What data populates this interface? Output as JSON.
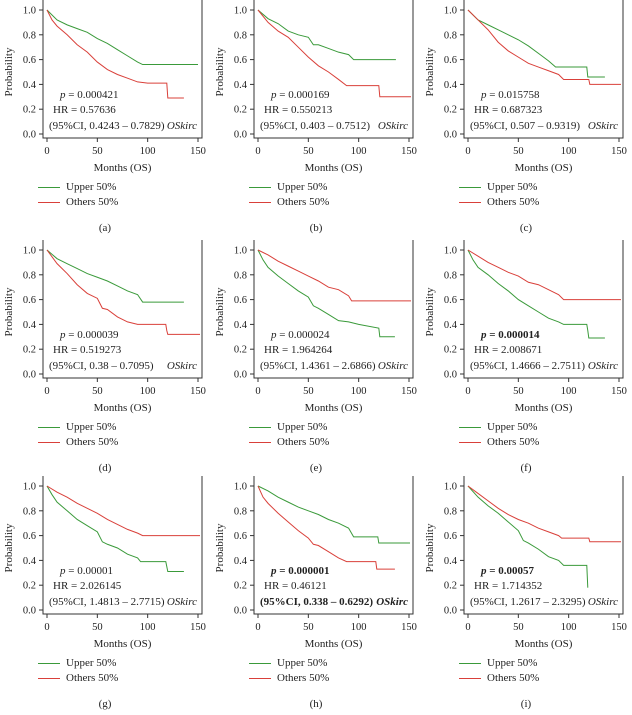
{
  "figure": {
    "x_axis_label": "Months (OS)",
    "y_axis_label": "Probability",
    "cohort_label": "OSkirc",
    "legend": [
      {
        "label": "Upper 50%",
        "color": "#3a9a3a"
      },
      {
        "label": "Others 50%",
        "color": "#d9403a"
      }
    ]
  },
  "chart_data": [
    {
      "id": "a",
      "caption": "(a)",
      "type": "line",
      "title": "",
      "xlabel": "Months (OS)",
      "ylabel": "Probability",
      "xlim": [
        0,
        150
      ],
      "ylim": [
        0,
        1
      ],
      "xticks": [
        0,
        50,
        100,
        150
      ],
      "yticks": [
        0.0,
        0.2,
        0.4,
        0.6,
        0.8,
        1.0
      ],
      "p_text": "p = 0.000421",
      "p_bold": false,
      "hr_text": "HR = 0.57636",
      "ci_text": "(95%CI, 0.4243 – 0.7829)",
      "cohort": "OSkirc",
      "series": [
        {
          "name": "Upper 50%",
          "x": [
            0,
            10,
            20,
            30,
            40,
            50,
            60,
            70,
            80,
            90,
            95,
            150
          ],
          "y": [
            1.0,
            0.92,
            0.88,
            0.85,
            0.82,
            0.77,
            0.73,
            0.68,
            0.63,
            0.58,
            0.56,
            0.56
          ]
        },
        {
          "name": "Others 50%",
          "x": [
            0,
            5,
            10,
            20,
            30,
            40,
            50,
            60,
            70,
            80,
            90,
            100,
            119,
            120,
            136
          ],
          "y": [
            1.0,
            0.92,
            0.87,
            0.8,
            0.72,
            0.66,
            0.58,
            0.52,
            0.48,
            0.45,
            0.42,
            0.41,
            0.41,
            0.29,
            0.29
          ]
        }
      ]
    },
    {
      "id": "b",
      "caption": "(b)",
      "type": "line",
      "title": "",
      "xlabel": "Months (OS)",
      "ylabel": "Probability",
      "xlim": [
        0,
        150
      ],
      "ylim": [
        0,
        1
      ],
      "xticks": [
        0,
        50,
        100,
        150
      ],
      "yticks": [
        0.0,
        0.2,
        0.4,
        0.6,
        0.8,
        1.0
      ],
      "p_text": "p = 0.000169",
      "p_bold": false,
      "hr_text": "HR = 0.550213",
      "ci_text": "(95%CI, 0.403 – 0.7512)",
      "cohort": "OSkirc",
      "series": [
        {
          "name": "Upper 50%",
          "x": [
            0,
            10,
            20,
            30,
            40,
            50,
            55,
            60,
            70,
            80,
            90,
            95,
            137
          ],
          "y": [
            1.0,
            0.93,
            0.89,
            0.83,
            0.8,
            0.78,
            0.72,
            0.72,
            0.69,
            0.66,
            0.64,
            0.6,
            0.6
          ]
        },
        {
          "name": "Others 50%",
          "x": [
            0,
            10,
            20,
            30,
            40,
            50,
            60,
            70,
            80,
            88,
            120,
            121,
            152
          ],
          "y": [
            1.0,
            0.9,
            0.83,
            0.78,
            0.7,
            0.62,
            0.55,
            0.5,
            0.44,
            0.39,
            0.39,
            0.3,
            0.3
          ]
        }
      ]
    },
    {
      "id": "c",
      "caption": "(c)",
      "type": "line",
      "title": "",
      "xlabel": "Months (OS)",
      "ylabel": "Probability",
      "xlim": [
        0,
        150
      ],
      "ylim": [
        0,
        1
      ],
      "xticks": [
        0,
        50,
        100,
        150
      ],
      "yticks": [
        0.0,
        0.2,
        0.4,
        0.6,
        0.8,
        1.0
      ],
      "p_text": "p = 0.015758",
      "p_bold": false,
      "hr_text": "HR = 0.687323",
      "ci_text": "(95%CI, 0.507 – 0.9319)",
      "cohort": "OSkirc",
      "series": [
        {
          "name": "Upper 50%",
          "x": [
            0,
            10,
            20,
            30,
            40,
            50,
            60,
            70,
            80,
            87,
            118,
            119,
            136
          ],
          "y": [
            1.0,
            0.92,
            0.88,
            0.84,
            0.8,
            0.76,
            0.71,
            0.65,
            0.59,
            0.54,
            0.54,
            0.46,
            0.46
          ]
        },
        {
          "name": "Others 50%",
          "x": [
            0,
            10,
            20,
            30,
            40,
            50,
            60,
            70,
            80,
            90,
            95,
            120,
            121,
            152
          ],
          "y": [
            1.0,
            0.92,
            0.84,
            0.74,
            0.67,
            0.62,
            0.57,
            0.54,
            0.51,
            0.48,
            0.44,
            0.44,
            0.4,
            0.4
          ]
        }
      ]
    },
    {
      "id": "d",
      "caption": "(d)",
      "type": "line",
      "title": "",
      "xlabel": "Months (OS)",
      "ylabel": "Probability",
      "xlim": [
        0,
        150
      ],
      "ylim": [
        0,
        1
      ],
      "xticks": [
        0,
        50,
        100,
        150
      ],
      "yticks": [
        0.0,
        0.2,
        0.4,
        0.6,
        0.8,
        1.0
      ],
      "p_text": "p = 0.000039",
      "p_bold": false,
      "hr_text": "HR = 0.519273",
      "ci_text": "(95%CI, 0.38 – 0.7095)",
      "cohort": "OSkirc",
      "series": [
        {
          "name": "Upper 50%",
          "x": [
            0,
            10,
            20,
            30,
            40,
            50,
            60,
            70,
            80,
            90,
            95,
            136
          ],
          "y": [
            1.0,
            0.93,
            0.89,
            0.85,
            0.81,
            0.78,
            0.75,
            0.71,
            0.67,
            0.64,
            0.58,
            0.58
          ]
        },
        {
          "name": "Others 50%",
          "x": [
            0,
            10,
            20,
            30,
            40,
            50,
            55,
            60,
            70,
            80,
            90,
            118,
            119,
            120,
            152
          ],
          "y": [
            1.0,
            0.89,
            0.81,
            0.72,
            0.65,
            0.61,
            0.53,
            0.52,
            0.46,
            0.42,
            0.4,
            0.4,
            0.35,
            0.32,
            0.32
          ]
        }
      ]
    },
    {
      "id": "e",
      "caption": "(e)",
      "type": "line",
      "title": "",
      "xlabel": "Months (OS)",
      "ylabel": "Probability",
      "xlim": [
        0,
        150
      ],
      "ylim": [
        0,
        1
      ],
      "xticks": [
        0,
        50,
        100,
        150
      ],
      "yticks": [
        0.0,
        0.2,
        0.4,
        0.6,
        0.8,
        1.0
      ],
      "p_text": "p = 0.000024",
      "p_bold": false,
      "hr_text": "HR = 1.964264",
      "ci_text": "(95%CI, 1.4361 – 2.6866)",
      "cohort": "OSkirc",
      "series": [
        {
          "name": "Upper 50%",
          "x": [
            0,
            5,
            10,
            20,
            30,
            40,
            50,
            55,
            60,
            70,
            80,
            90,
            100,
            120,
            121,
            136
          ],
          "y": [
            1.0,
            0.92,
            0.86,
            0.79,
            0.73,
            0.67,
            0.62,
            0.55,
            0.53,
            0.48,
            0.43,
            0.42,
            0.4,
            0.37,
            0.3,
            0.3
          ]
        },
        {
          "name": "Others 50%",
          "x": [
            0,
            10,
            20,
            30,
            40,
            50,
            60,
            70,
            80,
            90,
            93,
            152
          ],
          "y": [
            1.0,
            0.96,
            0.91,
            0.87,
            0.83,
            0.79,
            0.75,
            0.7,
            0.68,
            0.63,
            0.59,
            0.59
          ]
        }
      ]
    },
    {
      "id": "f",
      "caption": "(f)",
      "type": "line",
      "title": "",
      "xlabel": "Months (OS)",
      "ylabel": "Probability",
      "xlim": [
        0,
        150
      ],
      "ylim": [
        0,
        1
      ],
      "xticks": [
        0,
        50,
        100,
        150
      ],
      "yticks": [
        0.0,
        0.2,
        0.4,
        0.6,
        0.8,
        1.0
      ],
      "p_text": "p = 0.000014",
      "p_bold": true,
      "hr_text": "HR = 2.008671",
      "ci_text": "(95%CI, 1.4666 – 2.7511)",
      "cohort": "OSkirc",
      "series": [
        {
          "name": "Upper 50%",
          "x": [
            0,
            5,
            10,
            20,
            30,
            40,
            50,
            60,
            70,
            80,
            90,
            95,
            118,
            119,
            120,
            136
          ],
          "y": [
            1.0,
            0.92,
            0.86,
            0.8,
            0.73,
            0.67,
            0.6,
            0.55,
            0.5,
            0.45,
            0.42,
            0.4,
            0.4,
            0.35,
            0.29,
            0.29
          ]
        },
        {
          "name": "Others 50%",
          "x": [
            0,
            10,
            20,
            30,
            40,
            50,
            60,
            70,
            80,
            90,
            95,
            152
          ],
          "y": [
            1.0,
            0.95,
            0.9,
            0.86,
            0.82,
            0.79,
            0.74,
            0.72,
            0.68,
            0.64,
            0.6,
            0.6
          ]
        }
      ]
    },
    {
      "id": "g",
      "caption": "(g)",
      "type": "line",
      "title": "",
      "xlabel": "Months (OS)",
      "ylabel": "Probability",
      "xlim": [
        0,
        150
      ],
      "ylim": [
        0,
        1
      ],
      "xticks": [
        0,
        50,
        100,
        150
      ],
      "yticks": [
        0.0,
        0.2,
        0.4,
        0.6,
        0.8,
        1.0
      ],
      "p_text": "p = 0.00001",
      "p_bold": false,
      "hr_text": "HR = 2.026145",
      "ci_text": "(95%CI, 1.4813 – 2.7715)",
      "cohort": "OSkirc",
      "series": [
        {
          "name": "Upper 50%",
          "x": [
            0,
            5,
            10,
            20,
            30,
            40,
            50,
            55,
            60,
            70,
            80,
            90,
            93,
            118,
            119,
            120,
            136
          ],
          "y": [
            1.0,
            0.93,
            0.87,
            0.8,
            0.73,
            0.68,
            0.63,
            0.55,
            0.53,
            0.5,
            0.45,
            0.42,
            0.39,
            0.39,
            0.35,
            0.31,
            0.31
          ]
        },
        {
          "name": "Others 50%",
          "x": [
            0,
            10,
            20,
            30,
            40,
            50,
            60,
            70,
            80,
            90,
            95,
            152
          ],
          "y": [
            1.0,
            0.95,
            0.91,
            0.86,
            0.82,
            0.78,
            0.73,
            0.69,
            0.65,
            0.62,
            0.6,
            0.6
          ]
        }
      ]
    },
    {
      "id": "h",
      "caption": "(h)",
      "type": "line",
      "title": "",
      "xlabel": "Months (OS)",
      "ylabel": "Probability",
      "xlim": [
        0,
        150
      ],
      "ylim": [
        0,
        1
      ],
      "xticks": [
        0,
        50,
        100,
        150
      ],
      "yticks": [
        0.0,
        0.2,
        0.4,
        0.6,
        0.8,
        1.0
      ],
      "p_text": "p = 0.000001",
      "p_bold": true,
      "hr_text": "HR = 0.46121",
      "ci_text": "(95%CI, 0.338 – 0.6292)",
      "cohort": "OSkirc",
      "series": [
        {
          "name": "Upper 50%",
          "x": [
            0,
            10,
            20,
            30,
            40,
            50,
            60,
            70,
            80,
            90,
            95,
            119,
            120,
            151
          ],
          "y": [
            1.0,
            0.96,
            0.91,
            0.87,
            0.83,
            0.8,
            0.77,
            0.73,
            0.7,
            0.66,
            0.59,
            0.59,
            0.54,
            0.54
          ]
        },
        {
          "name": "Others 50%",
          "x": [
            0,
            5,
            10,
            20,
            30,
            40,
            50,
            55,
            60,
            70,
            80,
            88,
            117,
            118,
            136
          ],
          "y": [
            1.0,
            0.91,
            0.86,
            0.78,
            0.71,
            0.64,
            0.58,
            0.53,
            0.52,
            0.47,
            0.42,
            0.39,
            0.39,
            0.33,
            0.33
          ]
        }
      ]
    },
    {
      "id": "i",
      "caption": "(i)",
      "type": "line",
      "title": "",
      "xlabel": "Months (OS)",
      "ylabel": "Probability",
      "xlim": [
        0,
        150
      ],
      "ylim": [
        0,
        1
      ],
      "xticks": [
        0,
        50,
        100,
        150
      ],
      "yticks": [
        0.0,
        0.2,
        0.4,
        0.6,
        0.8,
        1.0
      ],
      "p_text": "p = 0.00057",
      "p_bold": true,
      "hr_text": "HR = 1.714352",
      "ci_text": "(95%CI, 1.2617 – 2.3295)",
      "cohort": "OSkirc",
      "series": [
        {
          "name": "Upper 50%",
          "x": [
            0,
            10,
            20,
            30,
            40,
            50,
            55,
            60,
            70,
            80,
            90,
            95,
            118,
            119
          ],
          "y": [
            1.0,
            0.91,
            0.84,
            0.78,
            0.71,
            0.64,
            0.56,
            0.54,
            0.49,
            0.43,
            0.4,
            0.36,
            0.36,
            0.18
          ]
        },
        {
          "name": "Others 50%",
          "x": [
            0,
            10,
            20,
            30,
            40,
            50,
            60,
            70,
            80,
            90,
            93,
            120,
            121,
            152
          ],
          "y": [
            1.0,
            0.94,
            0.88,
            0.82,
            0.77,
            0.73,
            0.7,
            0.66,
            0.63,
            0.6,
            0.58,
            0.58,
            0.55,
            0.55
          ]
        }
      ]
    }
  ]
}
